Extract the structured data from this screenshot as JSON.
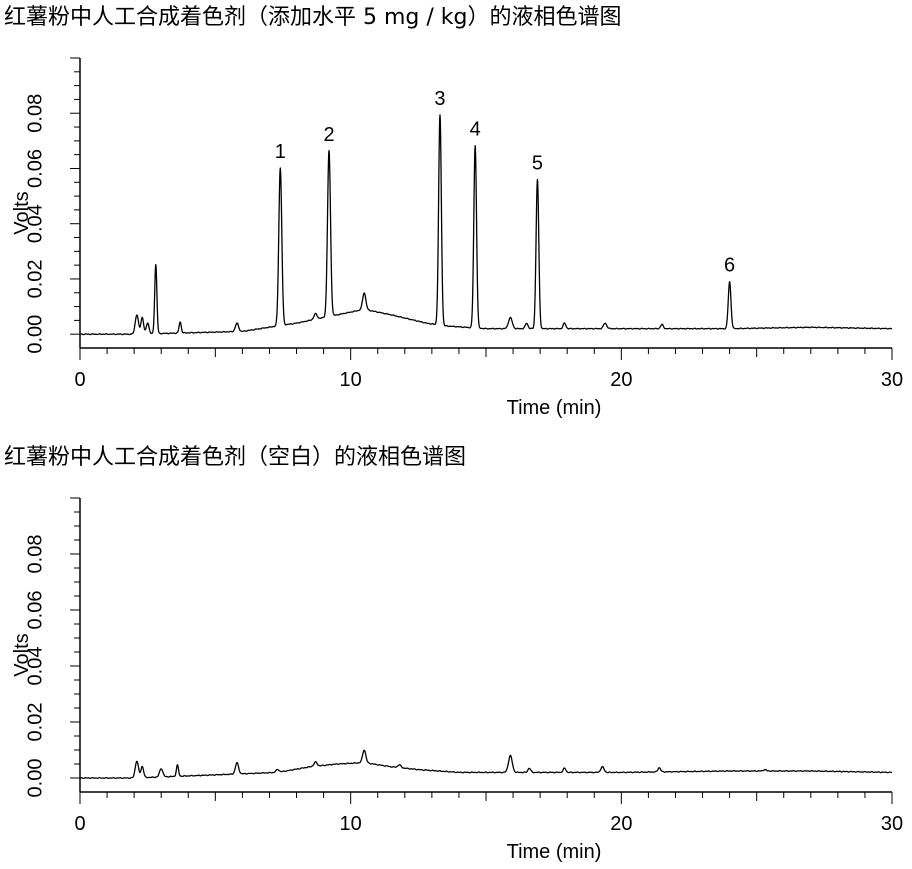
{
  "chart_data": [
    {
      "type": "line",
      "title": "红薯粉中人工合成着色剂（添加水平 5 mg / kg）的液相色谱图",
      "xlabel": "Time (min)",
      "ylabel": "Volts",
      "xlim": [
        0,
        30
      ],
      "ylim": [
        -0.005,
        0.1
      ],
      "x_ticks": [
        0,
        10,
        20,
        30
      ],
      "x_tick_labels": [
        "0",
        "10",
        "20",
        "30"
      ],
      "y_ticks": [
        0.0,
        0.02,
        0.04,
        0.06,
        0.08
      ],
      "y_tick_labels": [
        "0.00",
        "0.02",
        "0.04",
        "0.06",
        "0.08"
      ],
      "grid": false,
      "baseline": [
        [
          0,
          0
        ],
        [
          2.0,
          0
        ],
        [
          6,
          0.001
        ],
        [
          7.3,
          0.003
        ],
        [
          8.0,
          0.004
        ],
        [
          9.0,
          0.006
        ],
        [
          10.0,
          0.008
        ],
        [
          10.5,
          0.009
        ],
        [
          11.5,
          0.007
        ],
        [
          12.8,
          0.004
        ],
        [
          13.5,
          0.003
        ],
        [
          15.0,
          0.002
        ],
        [
          17.0,
          0.002
        ],
        [
          20.0,
          0.002
        ],
        [
          24.0,
          0.002
        ],
        [
          27.0,
          0.0025
        ],
        [
          30.0,
          0.002
        ]
      ],
      "peaks": [
        {
          "label": "",
          "x": 2.1,
          "height": 0.007,
          "width": 0.06
        },
        {
          "label": "",
          "x": 2.3,
          "height": 0.006,
          "width": 0.05
        },
        {
          "label": "",
          "x": 2.5,
          "height": 0.004,
          "width": 0.05
        },
        {
          "label": "",
          "x": 2.8,
          "height": 0.025,
          "width": 0.04
        },
        {
          "label": "",
          "x": 3.7,
          "height": 0.004,
          "width": 0.04
        },
        {
          "label": "",
          "x": 5.8,
          "height": 0.003,
          "width": 0.06
        },
        {
          "label": "1",
          "x": 7.4,
          "height": 0.057,
          "width": 0.055
        },
        {
          "label": "",
          "x": 8.7,
          "height": 0.002,
          "width": 0.06
        },
        {
          "label": "2",
          "x": 9.2,
          "height": 0.06,
          "width": 0.055
        },
        {
          "label": "",
          "x": 10.5,
          "height": 0.006,
          "width": 0.06
        },
        {
          "label": "3",
          "x": 13.3,
          "height": 0.076,
          "width": 0.05
        },
        {
          "label": "4",
          "x": 14.6,
          "height": 0.066,
          "width": 0.05
        },
        {
          "label": "",
          "x": 15.9,
          "height": 0.004,
          "width": 0.07
        },
        {
          "label": "",
          "x": 16.5,
          "height": 0.002,
          "width": 0.05
        },
        {
          "label": "5",
          "x": 16.9,
          "height": 0.054,
          "width": 0.05
        },
        {
          "label": "",
          "x": 17.9,
          "height": 0.002,
          "width": 0.05
        },
        {
          "label": "",
          "x": 19.4,
          "height": 0.002,
          "width": 0.06
        },
        {
          "label": "",
          "x": 21.5,
          "height": 0.0015,
          "width": 0.05
        },
        {
          "label": "6",
          "x": 24.0,
          "height": 0.017,
          "width": 0.05
        }
      ]
    },
    {
      "type": "line",
      "title": "红薯粉中人工合成着色剂（空白）的液相色谱图",
      "xlabel": "Time (min)",
      "ylabel": "Volts",
      "xlim": [
        0,
        30
      ],
      "ylim": [
        -0.005,
        0.1
      ],
      "x_ticks": [
        0,
        10,
        20,
        30
      ],
      "x_tick_labels": [
        "0",
        "10",
        "20",
        "30"
      ],
      "y_ticks": [
        0.0,
        0.02,
        0.04,
        0.06,
        0.08
      ],
      "y_tick_labels": [
        "0.00",
        "0.02",
        "0.04",
        "0.06",
        "0.08"
      ],
      "grid": false,
      "baseline": [
        [
          0,
          0
        ],
        [
          2.0,
          0
        ],
        [
          6,
          0.0015
        ],
        [
          7.3,
          0.002
        ],
        [
          8.5,
          0.004
        ],
        [
          9.5,
          0.005
        ],
        [
          10.5,
          0.0055
        ],
        [
          11.5,
          0.004
        ],
        [
          12.5,
          0.003
        ],
        [
          14.0,
          0.002
        ],
        [
          17.0,
          0.002
        ],
        [
          20.0,
          0.002
        ],
        [
          24.0,
          0.0025
        ],
        [
          27.0,
          0.0025
        ],
        [
          30.0,
          0.002
        ]
      ],
      "peaks": [
        {
          "label": "",
          "x": 2.1,
          "height": 0.006,
          "width": 0.06
        },
        {
          "label": "",
          "x": 2.3,
          "height": 0.004,
          "width": 0.05
        },
        {
          "label": "",
          "x": 3.0,
          "height": 0.003,
          "width": 0.06
        },
        {
          "label": "",
          "x": 3.6,
          "height": 0.004,
          "width": 0.04
        },
        {
          "label": "",
          "x": 5.8,
          "height": 0.004,
          "width": 0.06
        },
        {
          "label": "",
          "x": 7.3,
          "height": 0.001,
          "width": 0.06
        },
        {
          "label": "",
          "x": 8.7,
          "height": 0.0015,
          "width": 0.06
        },
        {
          "label": "",
          "x": 10.5,
          "height": 0.0045,
          "width": 0.06
        },
        {
          "label": "",
          "x": 11.8,
          "height": 0.001,
          "width": 0.06
        },
        {
          "label": "",
          "x": 15.9,
          "height": 0.006,
          "width": 0.07
        },
        {
          "label": "",
          "x": 16.6,
          "height": 0.0015,
          "width": 0.05
        },
        {
          "label": "",
          "x": 17.9,
          "height": 0.0015,
          "width": 0.05
        },
        {
          "label": "",
          "x": 19.3,
          "height": 0.002,
          "width": 0.06
        },
        {
          "label": "",
          "x": 21.4,
          "height": 0.0015,
          "width": 0.05
        },
        {
          "label": "",
          "x": 25.3,
          "height": 0.0005,
          "width": 0.05
        }
      ]
    }
  ]
}
